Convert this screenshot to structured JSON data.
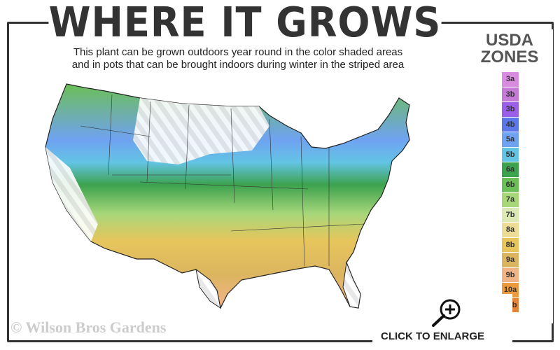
{
  "title": "WHERE IT GROWS",
  "subtitle_lines": [
    "This plant can be grown outdoors year round in the color shaded areas",
    "and in pots that can be brought indoors during winter in the striped area"
  ],
  "legend": {
    "title_line1": "USDA",
    "title_line2": "ZONES",
    "zones": [
      {
        "label": "3a",
        "color": "#d98be0"
      },
      {
        "label": "3b",
        "color": "#c57ad8"
      },
      {
        "label": "3b",
        "color": "#9a5ee8"
      },
      {
        "label": "4b",
        "color": "#5b78ea"
      },
      {
        "label": "5a",
        "color": "#6fa2f2"
      },
      {
        "label": "5b",
        "color": "#63c4e4"
      },
      {
        "label": "6a",
        "color": "#3ca24e"
      },
      {
        "label": "6b",
        "color": "#6cbf56"
      },
      {
        "label": "7a",
        "color": "#a8d77a"
      },
      {
        "label": "7b",
        "color": "#dde9b4"
      },
      {
        "label": "8a",
        "color": "#eddc95"
      },
      {
        "label": "8b",
        "color": "#e7c55c"
      },
      {
        "label": "9a",
        "color": "#dcb560"
      },
      {
        "label": "9b",
        "color": "#f1b487"
      },
      {
        "label": "10a",
        "color": "#ec9a3e"
      },
      {
        "label": "10b",
        "color": "#e3843a"
      }
    ]
  },
  "watermark": "© Wilson Bros Gardens",
  "enlarge": {
    "label": "CLICK TO ENLARGE",
    "icon": "zoom-in-icon"
  }
}
